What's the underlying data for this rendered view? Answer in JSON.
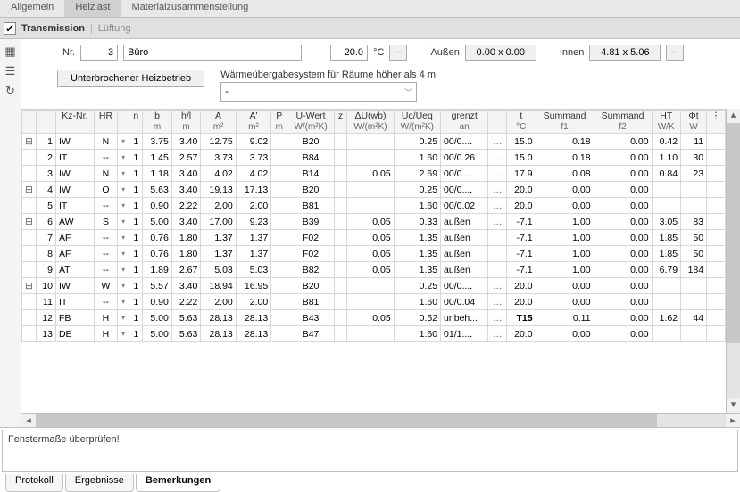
{
  "topTabs": {
    "general": "Allgemein",
    "heating": "Heizlast",
    "material": "Materialzusammenstellung",
    "active": 1
  },
  "subBar": {
    "checked": true,
    "transmission": "Transmission",
    "ventilation": "Lüftung"
  },
  "sideIcons": [
    "table-icon",
    "list-icon",
    "reload-icon"
  ],
  "params": {
    "nrLabel": "Nr.",
    "nr": "3",
    "name": "Büro",
    "temp": "20.0",
    "tempUnit": "°C",
    "aussenLabel": "Außen",
    "aussen": "0.00 x 0.00",
    "innenLabel": "Innen",
    "innen": "4.81 x 5.06"
  },
  "controls": {
    "btn": "Unterbrochener Heizbetrieb",
    "comboLabel": "Wärmeübergabesystem für Räume höher als 4 m",
    "comboValue": "-"
  },
  "headers": [
    {
      "t": "",
      "s": ""
    },
    {
      "t": "",
      "s": ""
    },
    {
      "t": "Kz-Nr.",
      "s": ""
    },
    {
      "t": "HR",
      "s": ""
    },
    {
      "t": "",
      "s": ""
    },
    {
      "t": "n",
      "s": ""
    },
    {
      "t": "b",
      "s": "m"
    },
    {
      "t": "h/l",
      "s": "m"
    },
    {
      "t": "A",
      "s": "m²"
    },
    {
      "t": "A'",
      "s": "m²"
    },
    {
      "t": "P",
      "s": "m"
    },
    {
      "t": "U-Wert",
      "s": "W/(m²K)"
    },
    {
      "t": "z",
      "s": ""
    },
    {
      "t": "ΔU(wb)",
      "s": "W/(m²K)"
    },
    {
      "t": "Uc/Ueq",
      "s": "W/(m²K)"
    },
    {
      "t": "grenzt",
      "s": "an"
    },
    {
      "t": "",
      "s": ""
    },
    {
      "t": "t",
      "s": "°C"
    },
    {
      "t": "Summand",
      "s": "f1"
    },
    {
      "t": "Summand",
      "s": "f2"
    },
    {
      "t": "HT",
      "s": "W/K"
    },
    {
      "t": "Φt",
      "s": "W"
    }
  ],
  "rows": [
    {
      "exp": "⊟",
      "n": "1",
      "kz": "IW",
      "hr": "N",
      "cnt": "1",
      "b": "3.75",
      "hl": "3.40",
      "A": "12.75",
      "Ap": "9.02",
      "P": "",
      "U": "B20",
      "z": "",
      "dU": "",
      "Uc": "0.25",
      "gr": "00/0....",
      "dots": "…",
      "t": "15.0",
      "f1": "0.18",
      "f2": "0.00",
      "HT": "0.42",
      "Phi": "11"
    },
    {
      "exp": "",
      "n": "2",
      "kz": "IT",
      "hr": "--",
      "cnt": "1",
      "b": "1.45",
      "hl": "2.57",
      "A": "3.73",
      "Ap": "3.73",
      "P": "",
      "U": "B84",
      "z": "",
      "dU": "",
      "Uc": "1.60",
      "gr": "00/0.26",
      "dots": "…",
      "t": "15.0",
      "f1": "0.18",
      "f2": "0.00",
      "HT": "1.10",
      "Phi": "30"
    },
    {
      "exp": "",
      "n": "3",
      "kz": "IW",
      "hr": "N",
      "cnt": "1",
      "b": "1.18",
      "hl": "3.40",
      "A": "4.02",
      "Ap": "4.02",
      "P": "",
      "U": "B14",
      "z": "",
      "dU": "0.05",
      "Uc": "2.69",
      "gr": "00/0....",
      "dots": "…",
      "t": "17.9",
      "f1": "0.08",
      "f2": "0.00",
      "HT": "0.84",
      "Phi": "23"
    },
    {
      "exp": "⊟",
      "n": "4",
      "kz": "IW",
      "hr": "O",
      "cnt": "1",
      "b": "5.63",
      "hl": "3.40",
      "A": "19.13",
      "Ap": "17.13",
      "P": "",
      "U": "B20",
      "z": "",
      "dU": "",
      "Uc": "0.25",
      "gr": "00/0....",
      "dots": "…",
      "t": "20.0",
      "f1": "0.00",
      "f2": "0.00",
      "HT": "",
      "Phi": ""
    },
    {
      "exp": "",
      "n": "5",
      "kz": "IT",
      "hr": "--",
      "cnt": "1",
      "b": "0.90",
      "hl": "2.22",
      "A": "2.00",
      "Ap": "2.00",
      "P": "",
      "U": "B81",
      "z": "",
      "dU": "",
      "Uc": "1.60",
      "gr": "00/0.02",
      "dots": "…",
      "t": "20.0",
      "f1": "0.00",
      "f2": "0.00",
      "HT": "",
      "Phi": ""
    },
    {
      "exp": "⊟",
      "n": "6",
      "kz": "AW",
      "hr": "S",
      "cnt": "1",
      "b": "5.00",
      "hl": "3.40",
      "A": "17.00",
      "Ap": "9.23",
      "P": "",
      "U": "B39",
      "z": "",
      "dU": "0.05",
      "Uc": "0.33",
      "gr": "außen",
      "dots": "…",
      "t": "-7.1",
      "f1": "1.00",
      "f2": "0.00",
      "HT": "3.05",
      "Phi": "83"
    },
    {
      "exp": "",
      "n": "7",
      "kz": "AF",
      "hr": "--",
      "cnt": "1",
      "b": "0.76",
      "hl": "1.80",
      "A": "1.37",
      "Ap": "1.37",
      "P": "",
      "U": "F02",
      "z": "",
      "dU": "0.05",
      "Uc": "1.35",
      "gr": "außen",
      "dots": "",
      "t": "-7.1",
      "f1": "1.00",
      "f2": "0.00",
      "HT": "1.85",
      "Phi": "50"
    },
    {
      "exp": "",
      "n": "8",
      "kz": "AF",
      "hr": "--",
      "cnt": "1",
      "b": "0.76",
      "hl": "1.80",
      "A": "1.37",
      "Ap": "1.37",
      "P": "",
      "U": "F02",
      "z": "",
      "dU": "0.05",
      "Uc": "1.35",
      "gr": "außen",
      "dots": "",
      "t": "-7.1",
      "f1": "1.00",
      "f2": "0.00",
      "HT": "1.85",
      "Phi": "50"
    },
    {
      "exp": "",
      "n": "9",
      "kz": "AT",
      "hr": "--",
      "cnt": "1",
      "b": "1.89",
      "hl": "2.67",
      "A": "5.03",
      "Ap": "5.03",
      "P": "",
      "U": "B82",
      "z": "",
      "dU": "0.05",
      "Uc": "1.35",
      "gr": "außen",
      "dots": "",
      "t": "-7.1",
      "f1": "1.00",
      "f2": "0.00",
      "HT": "6.79",
      "Phi": "184"
    },
    {
      "exp": "⊟",
      "n": "10",
      "kz": "IW",
      "hr": "W",
      "cnt": "1",
      "b": "5.57",
      "hl": "3.40",
      "A": "18.94",
      "Ap": "16.95",
      "P": "",
      "U": "B20",
      "z": "",
      "dU": "",
      "Uc": "0.25",
      "gr": "00/0....",
      "dots": "…",
      "t": "20.0",
      "f1": "0.00",
      "f2": "0.00",
      "HT": "",
      "Phi": ""
    },
    {
      "exp": "",
      "n": "11",
      "kz": "IT",
      "hr": "--",
      "cnt": "1",
      "b": "0.90",
      "hl": "2.22",
      "A": "2.00",
      "Ap": "2.00",
      "P": "",
      "U": "B81",
      "z": "",
      "dU": "",
      "Uc": "1.60",
      "gr": "00/0.04",
      "dots": "…",
      "t": "20.0",
      "f1": "0.00",
      "f2": "0.00",
      "HT": "",
      "Phi": ""
    },
    {
      "exp": "",
      "n": "12",
      "kz": "FB",
      "hr": "H",
      "cnt": "1",
      "b": "5.00",
      "hl": "5.63",
      "A": "28.13",
      "Ap": "28.13",
      "P": "",
      "U": "B43",
      "z": "",
      "dU": "0.05",
      "Uc": "0.52",
      "gr": "unbeh...",
      "dots": "…",
      "t": "T15",
      "f1": "0.11",
      "f2": "0.00",
      "HT": "1.62",
      "Phi": "44",
      "tBold": true
    },
    {
      "exp": "",
      "n": "13",
      "kz": "DE",
      "hr": "H",
      "cnt": "1",
      "b": "5.00",
      "hl": "5.63",
      "A": "28.13",
      "Ap": "28.13",
      "P": "",
      "U": "B47",
      "z": "",
      "dU": "",
      "Uc": "1.60",
      "gr": "01/1....",
      "dots": "…",
      "t": "20.0",
      "f1": "0.00",
      "f2": "0.00",
      "HT": "",
      "Phi": ""
    }
  ],
  "message": "Fenstermaße überprüfen!",
  "footTabs": {
    "protokoll": "Protokoll",
    "ergebnisse": "Ergebnisse",
    "bemerkungen": "Bemerkungen",
    "active": 2
  }
}
